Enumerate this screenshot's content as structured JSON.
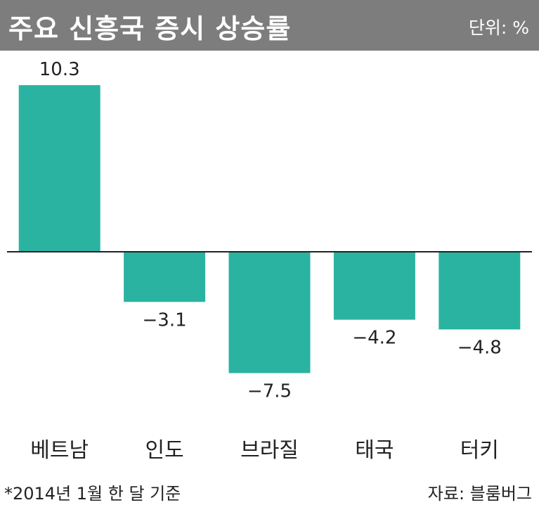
{
  "header": {
    "title": "주요 신흥국 증시 상승률",
    "unit": "단위: %"
  },
  "footer": {
    "note": "*2014년 1월 한 달 기준",
    "source": "자료: 블룸버그"
  },
  "colors": {
    "bar": "#2bb3a1",
    "title_bg": "#7d7d7d",
    "axis": "#222222"
  },
  "chart_data": {
    "type": "bar",
    "title": "주요 신흥국 증시 상승률",
    "categories": [
      "베트남",
      "인도",
      "브라질",
      "태국",
      "터키"
    ],
    "values": [
      10.3,
      -3.1,
      -7.5,
      -4.2,
      -4.8
    ],
    "value_labels": [
      "10.3",
      "−3.1",
      "−7.5",
      "−4.2",
      "−4.8"
    ],
    "unit": "%",
    "ylim": [
      -8.5,
      10.3
    ],
    "grid": false,
    "legend": "none"
  }
}
